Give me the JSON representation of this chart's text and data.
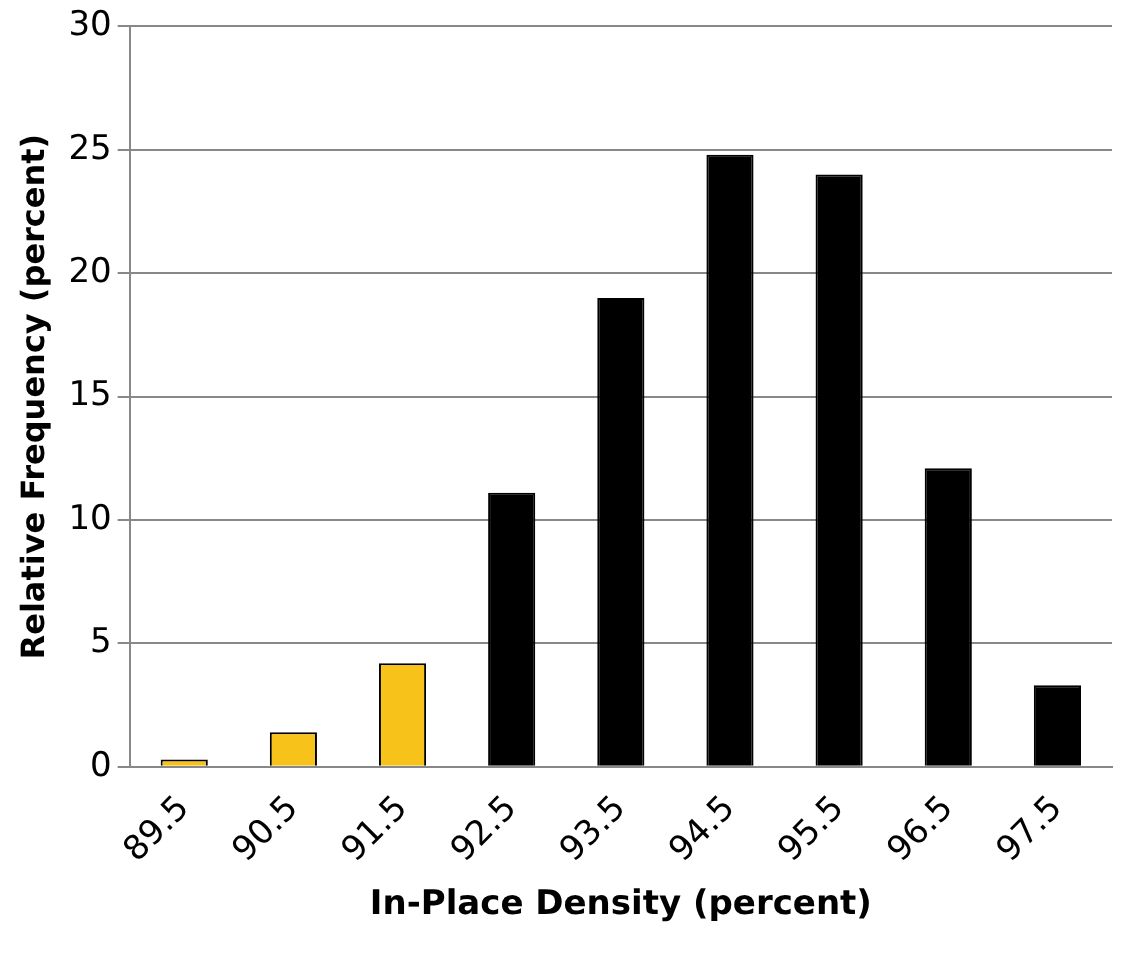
{
  "chart_data": {
    "type": "bar",
    "xlabel": "In-Place Density (percent)",
    "ylabel": "Relative Frequency (percent)",
    "categories": [
      "89.5",
      "90.5",
      "91.5",
      "92.5",
      "93.5",
      "94.5",
      "95.5",
      "96.5",
      "97.5"
    ],
    "values": [
      0.3,
      1.4,
      4.2,
      11.1,
      19.0,
      24.8,
      24.0,
      12.1,
      3.3
    ],
    "colors": [
      "#f7c21a",
      "#f7c21a",
      "#f7c21a",
      "#000000",
      "#000000",
      "#000000",
      "#000000",
      "#000000",
      "#000000"
    ],
    "ylim": [
      0,
      30
    ],
    "yticks": [
      0,
      5,
      10,
      15,
      20,
      25,
      30
    ],
    "grid": "y",
    "legend": false
  }
}
